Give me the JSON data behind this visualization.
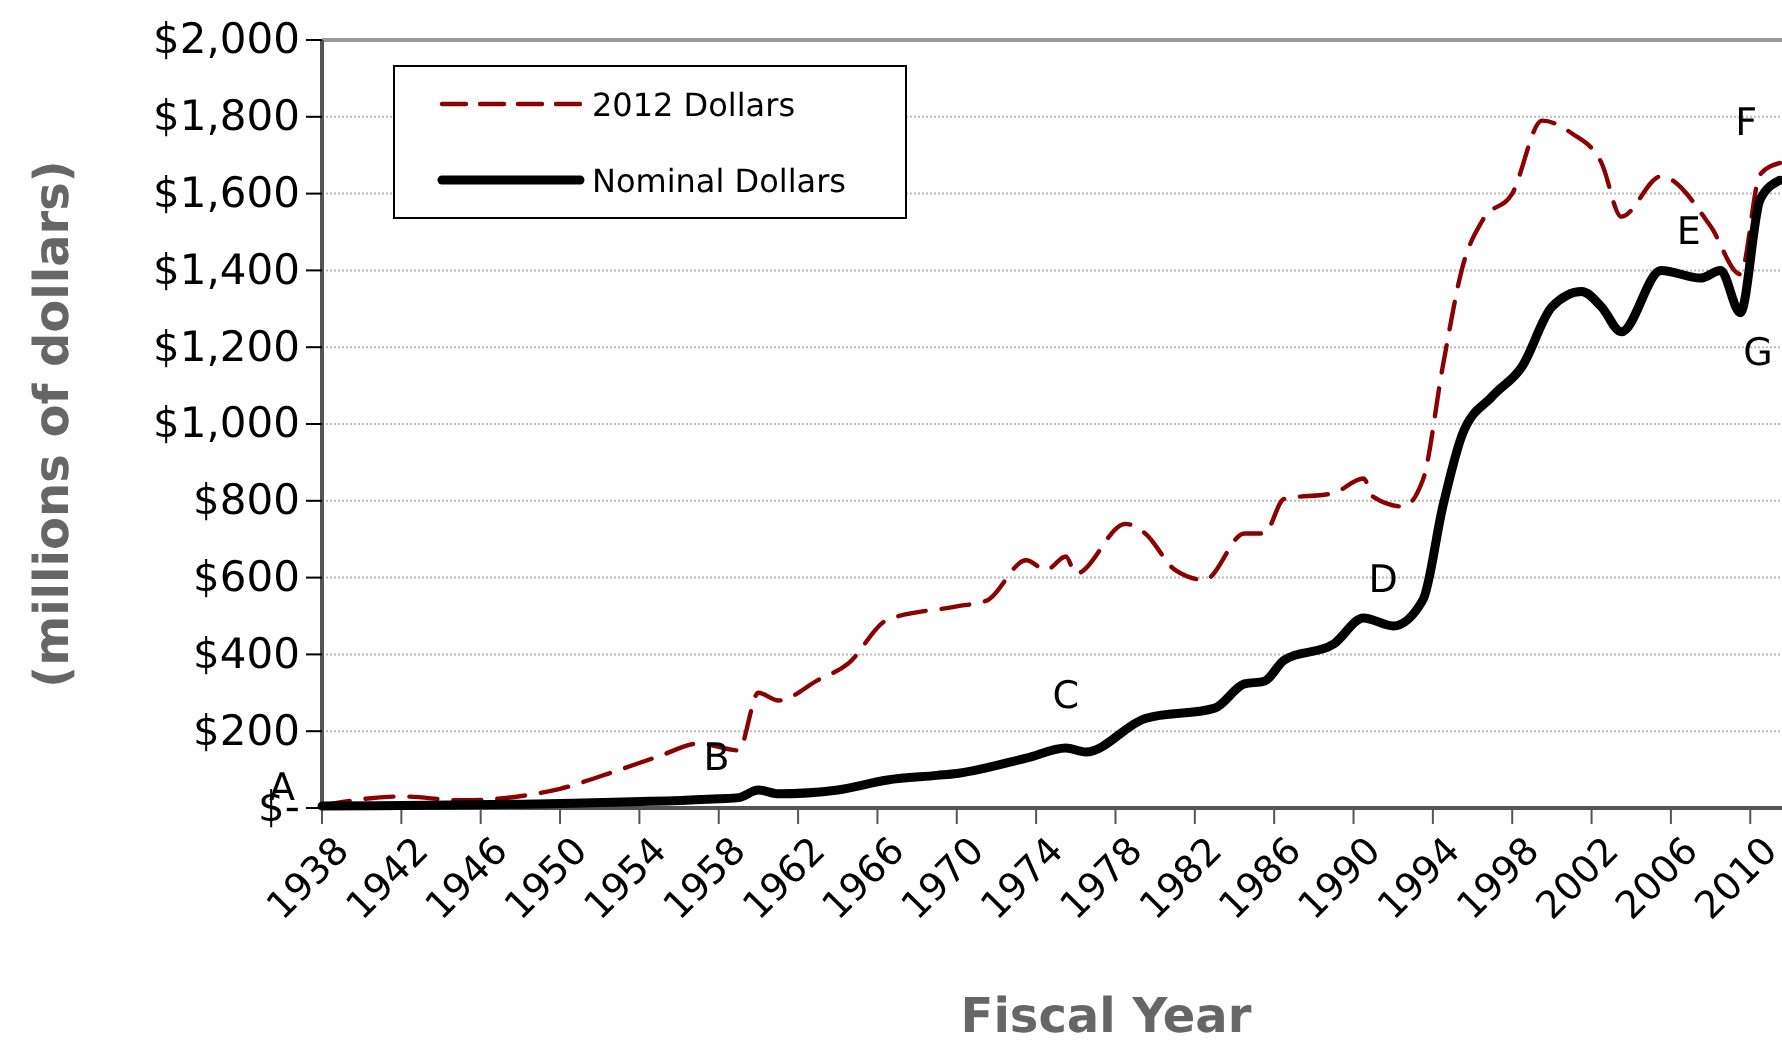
{
  "chart_data": {
    "type": "line",
    "xlabel": "Fiscal Year",
    "ylabel": "(millions of dollars)",
    "xlim": [
      1938,
      2011.6
    ],
    "ylim": [
      0,
      2000
    ],
    "xticks": [
      1938,
      1942,
      1946,
      1950,
      1954,
      1958,
      1962,
      1966,
      1970,
      1974,
      1978,
      1982,
      1986,
      1990,
      1994,
      1998,
      2002,
      2006,
      2010
    ],
    "yticks": [
      {
        "value": 0,
        "label": "$-"
      },
      {
        "value": 200,
        "label": "$200"
      },
      {
        "value": 400,
        "label": "$400"
      },
      {
        "value": 600,
        "label": "$600"
      },
      {
        "value": 800,
        "label": "$800"
      },
      {
        "value": 1000,
        "label": "$1,000"
      },
      {
        "value": 1200,
        "label": "$1,200"
      },
      {
        "value": 1400,
        "label": "$1,400"
      },
      {
        "value": 1600,
        "label": "$1,600"
      },
      {
        "value": 1800,
        "label": "$1,800"
      },
      {
        "value": 2000,
        "label": "$2,000"
      }
    ],
    "grid": "y",
    "legend": "top left",
    "marker": "none",
    "series": [
      {
        "name": "2012 Dollars",
        "color": "#8b0000",
        "line_style": "dashed",
        "x": [
          1938,
          1942,
          1945,
          1950,
          1952,
          1955,
          1957,
          1959,
          1960,
          1961,
          1963,
          1964.5,
          1966.5,
          1970,
          1971.5,
          1973.5,
          1974.5,
          1975.5,
          1976,
          1978.5,
          1979.5,
          1981,
          1982.5,
          1984.5,
          1985.5,
          1986.5,
          1989,
          1990.5,
          1991,
          1992.5,
          1993.5,
          1994.5,
          1995.5,
          1996.5,
          1998,
          1999.5,
          2001,
          2002.5,
          2003.5,
          2005.5,
          2008,
          2009.5,
          2010.5,
          2011.5
        ],
        "values": [
          7,
          30,
          20,
          50,
          82,
          135,
          168,
          150,
          300,
          280,
          333,
          375,
          490,
          525,
          540,
          645,
          620,
          655,
          610,
          740,
          715,
          620,
          594,
          715,
          715,
          805,
          820,
          858,
          810,
          785,
          855,
          1150,
          1410,
          1530,
          1600,
          1790,
          1757,
          1680,
          1540,
          1645,
          1515,
          1390,
          1650,
          1680
        ]
      },
      {
        "name": "Nominal Dollars",
        "color": "#000000",
        "line_style": "solid",
        "x": [
          1938,
          1950,
          1958,
          1959,
          1960,
          1961,
          1964,
          1966.5,
          1969,
          1970,
          1973.5,
          1975.5,
          1976.5,
          1979.5,
          1983,
          1984.5,
          1985.5,
          1986.5,
          1989,
          1990.5,
          1992,
          1993.5,
          1994.5,
          1995.5,
          1997,
          1998.5,
          2000,
          2001.5,
          2002.5,
          2003.5,
          2005.5,
          2007.5,
          2008.5,
          2009.5,
          2010.5,
          2011.5
        ],
        "values": [
          5,
          12,
          24,
          27,
          47,
          37,
          47,
          73,
          85,
          90,
          130,
          156,
          146,
          233,
          260,
          323,
          330,
          385,
          427,
          495,
          474,
          542,
          785,
          975,
          1072,
          1150,
          1305,
          1345,
          1305,
          1240,
          1400,
          1380,
          1400,
          1290,
          1585,
          1635
        ]
      }
    ],
    "annotations": [
      {
        "text": "A",
        "x": 1938,
        "y": 0
      },
      {
        "text": "B",
        "x": 1958.5,
        "y": 25
      },
      {
        "text": "C",
        "x": 1975.5,
        "y": 156
      },
      {
        "text": "D",
        "x": 1992.5,
        "y": 480
      },
      {
        "text": "E",
        "x": 2007.5,
        "y": 1385
      },
      {
        "text": "F",
        "x": 2011,
        "y": 1660
      },
      {
        "text": "G",
        "x": 2009.5,
        "y": 1290
      }
    ]
  }
}
